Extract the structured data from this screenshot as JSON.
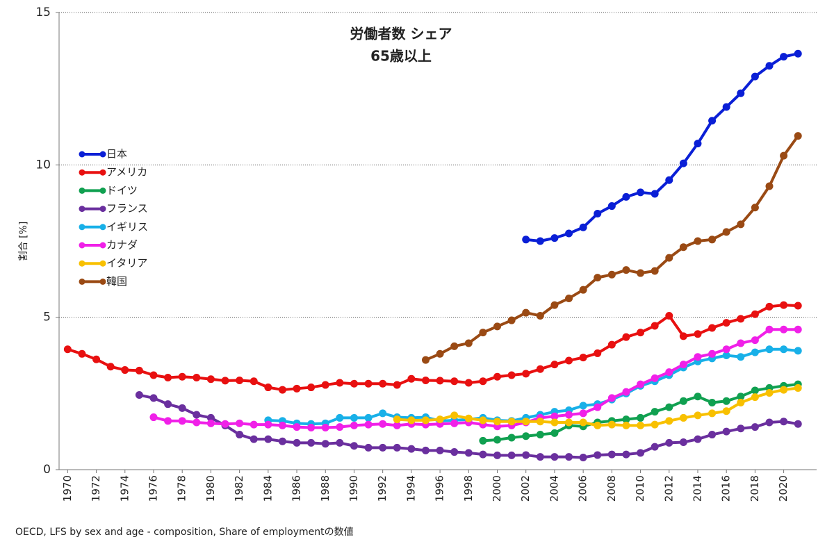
{
  "chart_data": {
    "type": "line",
    "title": [
      "労働者数 シェア",
      "65歳以上"
    ],
    "y_label": "割合 [%]",
    "source": "OECD, LFS by sex and age - composition, Share of employmentの数値",
    "x": [
      1970,
      1971,
      1972,
      1973,
      1974,
      1975,
      1976,
      1977,
      1978,
      1979,
      1980,
      1981,
      1982,
      1983,
      1984,
      1985,
      1986,
      1987,
      1988,
      1989,
      1990,
      1991,
      1992,
      1993,
      1994,
      1995,
      1996,
      1997,
      1998,
      1999,
      2000,
      2001,
      2002,
      2003,
      2004,
      2005,
      2006,
      2007,
      2008,
      2009,
      2010,
      2011,
      2012,
      2013,
      2014,
      2015,
      2016,
      2017,
      2018,
      2019,
      2020,
      2021
    ],
    "xlim": [
      1969.4,
      2022.3
    ],
    "xticks": [
      1970,
      1972,
      1974,
      1976,
      1978,
      1980,
      1982,
      1984,
      1986,
      1988,
      1990,
      1992,
      1994,
      1996,
      1998,
      2000,
      2002,
      2004,
      2006,
      2008,
      2010,
      2012,
      2014,
      2016,
      2018,
      2020
    ],
    "ylim": [
      0,
      15
    ],
    "yticks": [
      0,
      5,
      10,
      15
    ],
    "grid": true,
    "legend": "upper left",
    "series": [
      {
        "name": "日本",
        "color": "#0a1fd6",
        "values": [
          null,
          null,
          null,
          null,
          null,
          null,
          null,
          null,
          null,
          null,
          null,
          null,
          null,
          null,
          null,
          null,
          null,
          null,
          null,
          null,
          null,
          null,
          null,
          null,
          null,
          null,
          null,
          null,
          null,
          null,
          null,
          null,
          7.55,
          7.5,
          7.6,
          7.75,
          7.95,
          8.4,
          8.65,
          8.95,
          9.1,
          9.05,
          9.5,
          10.05,
          10.7,
          11.45,
          11.9,
          12.35,
          12.9,
          13.25,
          13.55,
          13.65
        ]
      },
      {
        "name": "アメリカ",
        "color": "#e81010",
        "values": [
          3.95,
          3.8,
          3.62,
          3.38,
          3.27,
          3.25,
          3.1,
          3.02,
          3.05,
          3.02,
          2.97,
          2.92,
          2.93,
          2.9,
          2.7,
          2.62,
          2.66,
          2.7,
          2.78,
          2.85,
          2.82,
          2.82,
          2.82,
          2.78,
          2.98,
          2.93,
          2.92,
          2.9,
          2.85,
          2.9,
          3.05,
          3.1,
          3.15,
          3.3,
          3.45,
          3.58,
          3.68,
          3.82,
          4.1,
          4.35,
          4.5,
          4.72,
          5.05,
          4.38,
          4.45,
          4.65,
          4.82,
          4.95,
          5.1,
          5.35,
          5.4,
          5.38
        ]
      },
      {
        "name": "ドイツ",
        "color": "#10a050",
        "values": [
          null,
          null,
          null,
          null,
          null,
          null,
          null,
          null,
          null,
          null,
          null,
          null,
          null,
          null,
          null,
          null,
          null,
          null,
          null,
          null,
          null,
          null,
          null,
          null,
          null,
          null,
          null,
          null,
          null,
          0.95,
          0.98,
          1.05,
          1.1,
          1.15,
          1.2,
          1.45,
          1.42,
          1.55,
          1.6,
          1.65,
          1.7,
          1.9,
          2.05,
          2.25,
          2.4,
          2.2,
          2.25,
          2.4,
          2.6,
          2.68,
          2.75,
          2.8
        ]
      },
      {
        "name": "フランス",
        "color": "#6a2f9e",
        "values": [
          null,
          null,
          null,
          null,
          null,
          2.45,
          2.35,
          2.15,
          2.02,
          1.8,
          1.7,
          1.45,
          1.15,
          1.0,
          1.0,
          0.93,
          0.88,
          0.88,
          0.85,
          0.88,
          0.78,
          0.72,
          0.72,
          0.72,
          0.68,
          0.63,
          0.63,
          0.58,
          0.55,
          0.5,
          0.47,
          0.47,
          0.48,
          0.42,
          0.42,
          0.42,
          0.4,
          0.48,
          0.5,
          0.5,
          0.55,
          0.75,
          0.88,
          0.9,
          1.0,
          1.15,
          1.25,
          1.35,
          1.4,
          1.55,
          1.58,
          1.5
        ]
      },
      {
        "name": "イギリス",
        "color": "#18b0e8",
        "values": [
          null,
          null,
          null,
          null,
          null,
          null,
          null,
          null,
          null,
          null,
          null,
          null,
          null,
          null,
          1.62,
          1.6,
          1.52,
          1.5,
          1.52,
          1.7,
          1.7,
          1.7,
          1.85,
          1.72,
          1.7,
          1.72,
          1.6,
          1.62,
          1.65,
          1.7,
          1.62,
          1.6,
          1.7,
          1.8,
          1.9,
          1.95,
          2.1,
          2.15,
          2.3,
          2.5,
          2.75,
          2.9,
          3.1,
          3.35,
          3.55,
          3.65,
          3.75,
          3.7,
          3.85,
          3.95,
          3.95,
          3.9
        ]
      },
      {
        "name": "カナダ",
        "color": "#f020e8",
        "values": [
          null,
          null,
          null,
          null,
          null,
          null,
          1.72,
          1.6,
          1.6,
          1.55,
          1.52,
          1.5,
          1.52,
          1.48,
          1.48,
          1.45,
          1.4,
          1.38,
          1.38,
          1.4,
          1.45,
          1.48,
          1.5,
          1.45,
          1.5,
          1.48,
          1.5,
          1.52,
          1.55,
          1.48,
          1.42,
          1.45,
          1.55,
          1.7,
          1.75,
          1.8,
          1.85,
          2.05,
          2.35,
          2.55,
          2.8,
          3.0,
          3.2,
          3.45,
          3.7,
          3.8,
          3.95,
          4.15,
          4.25,
          4.6,
          4.6,
          4.6
        ]
      },
      {
        "name": "イタリア",
        "color": "#f8c000",
        "values": [
          null,
          null,
          null,
          null,
          null,
          null,
          null,
          null,
          null,
          null,
          null,
          null,
          null,
          null,
          null,
          null,
          null,
          null,
          null,
          null,
          null,
          null,
          null,
          1.65,
          1.62,
          1.62,
          1.65,
          1.78,
          1.68,
          1.62,
          1.58,
          1.58,
          1.58,
          1.58,
          1.55,
          1.55,
          1.55,
          1.45,
          1.48,
          1.45,
          1.45,
          1.48,
          1.6,
          1.7,
          1.78,
          1.85,
          1.92,
          2.2,
          2.38,
          2.52,
          2.62,
          2.68
        ]
      },
      {
        "name": "韓国",
        "color": "#9a4a14",
        "values": [
          null,
          null,
          null,
          null,
          null,
          null,
          null,
          null,
          null,
          null,
          null,
          null,
          null,
          null,
          null,
          null,
          null,
          null,
          null,
          null,
          null,
          null,
          null,
          null,
          null,
          3.6,
          3.8,
          4.05,
          4.15,
          4.5,
          4.7,
          4.9,
          5.15,
          5.05,
          5.4,
          5.62,
          5.9,
          6.3,
          6.4,
          6.55,
          6.45,
          6.52,
          6.95,
          7.3,
          7.5,
          7.55,
          7.8,
          8.05,
          8.6,
          9.3,
          10.3,
          10.95
        ]
      }
    ]
  }
}
